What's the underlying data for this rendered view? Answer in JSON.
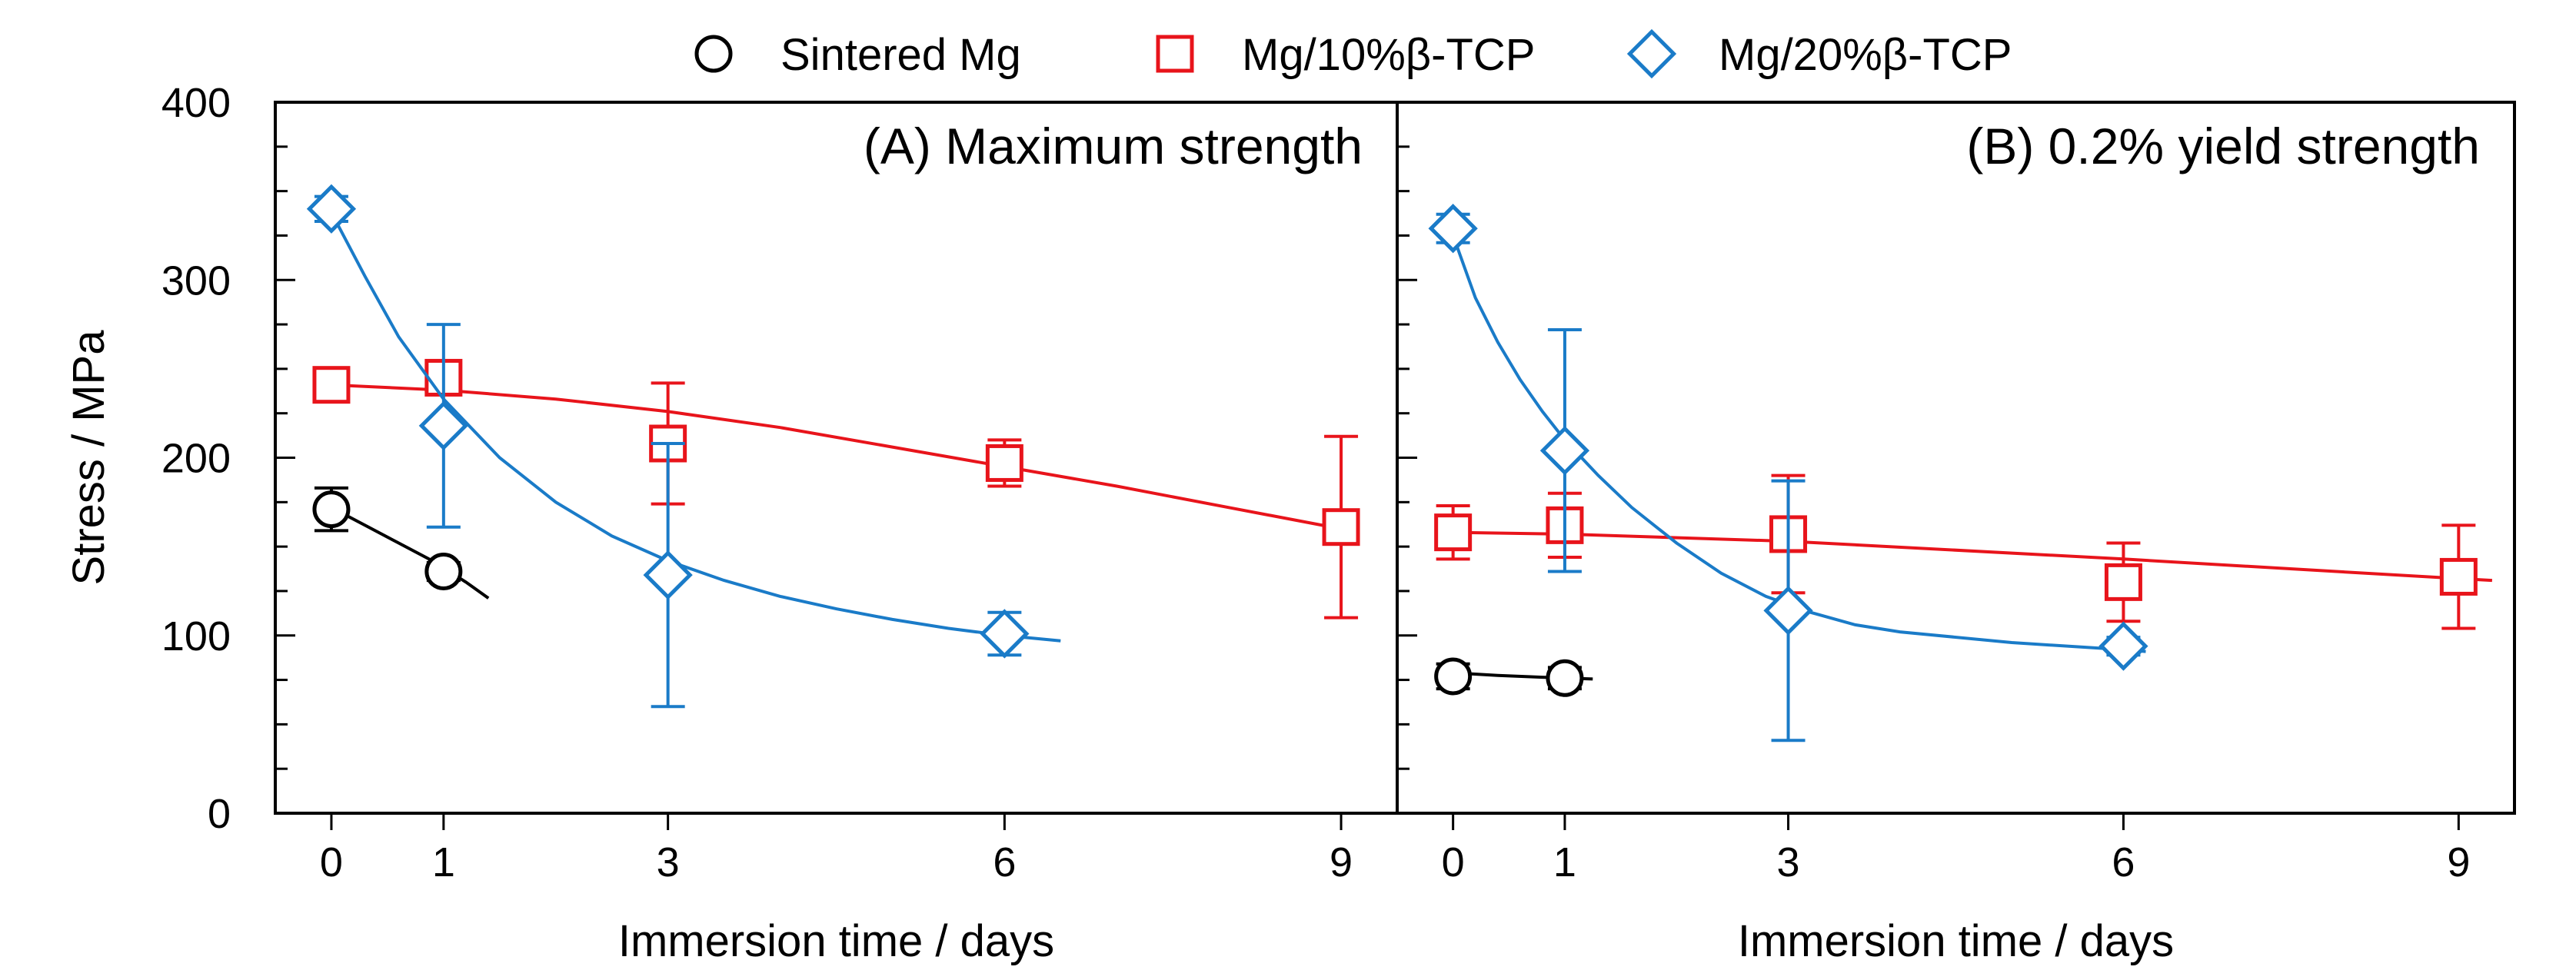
{
  "chart_data": {
    "type": "scatter",
    "legend": {
      "position": "top-center",
      "entries": [
        {
          "name": "Sintered Mg",
          "marker": "circle",
          "color": "#000000"
        },
        {
          "name": "Mg/10%β-TCP",
          "marker": "square",
          "color": "#e8141b"
        },
        {
          "name": "Mg/20%β-TCP",
          "marker": "diamond",
          "color": "#1a7bc8"
        }
      ]
    },
    "ylabel": "Stress / MPa",
    "ylim": [
      0,
      400
    ],
    "yticks": [
      0,
      100,
      200,
      300,
      400
    ],
    "y_minor_step": 25,
    "panels": [
      {
        "title": "(A) Maximum strength",
        "xlabel": "Immersion time / days",
        "xticks": [
          0,
          1,
          3,
          6,
          9
        ],
        "xlim": [
          -0.5,
          9.5
        ],
        "series": [
          {
            "name": "Sintered Mg",
            "color": "#000000",
            "marker": "circle",
            "x": [
              0,
              1
            ],
            "y": [
              171,
              136
            ],
            "err": [
              12,
              5
            ],
            "fit_x": [
              0,
              0.3,
              0.6,
              0.9,
              1.2,
              1.4
            ],
            "fit_y": [
              172,
              162,
              152,
              142,
              130,
              121
            ]
          },
          {
            "name": "Mg/10%β-TCP",
            "color": "#e8141b",
            "marker": "square",
            "x": [
              0,
              1,
              3,
              6,
              9
            ],
            "y": [
              241,
              245,
              208,
              197,
              161
            ],
            "err": [
              5,
              6,
              34,
              13,
              51
            ],
            "fit_x": [
              0,
              1,
              2,
              3,
              4,
              5,
              6,
              7,
              8,
              9
            ],
            "fit_y": [
              241,
              238,
              233,
              226,
              217,
              206,
              195,
              184,
              172,
              160
            ]
          },
          {
            "name": "Mg/20%β-TCP",
            "color": "#1a7bc8",
            "marker": "diamond",
            "x": [
              0,
              1,
              3,
              6
            ],
            "y": [
              340,
              218,
              134,
              101
            ],
            "err": [
              7,
              57,
              74,
              12
            ],
            "fit_x": [
              0,
              0.3,
              0.6,
              1,
              1.5,
              2,
              2.5,
              3,
              3.5,
              4,
              4.5,
              5,
              5.5,
              6,
              6.5
            ],
            "fit_y": [
              338,
              302,
              268,
              233,
              200,
              175,
              156,
              142,
              131,
              122,
              115,
              109,
              104,
              100,
              97
            ]
          }
        ]
      },
      {
        "title": "(B) 0.2% yield strength",
        "xlabel": "Immersion time / days",
        "xticks": [
          0,
          1,
          3,
          6,
          9
        ],
        "xlim": [
          -0.5,
          9.5
        ],
        "series": [
          {
            "name": "Sintered Mg",
            "color": "#000000",
            "marker": "circle",
            "x": [
              0,
              1
            ],
            "y": [
              77,
              76
            ],
            "err": [
              7,
              6
            ],
            "fit_x": [
              0,
              0.4,
              0.8,
              1.25
            ],
            "fit_y": [
              79,
              77.5,
              76.5,
              75.5
            ]
          },
          {
            "name": "Mg/10%β-TCP",
            "color": "#e8141b",
            "marker": "square",
            "x": [
              0,
              1,
              3,
              6,
              9
            ],
            "y": [
              158,
              162,
              157,
              130,
              133
            ],
            "err": [
              15,
              18,
              33,
              22,
              29
            ],
            "fit_x": [
              0,
              1,
              3,
              6,
              9,
              9.3
            ],
            "fit_y": [
              158,
              157,
              153,
              143,
              132,
              131
            ]
          },
          {
            "name": "Mg/20%β-TCP",
            "color": "#1a7bc8",
            "marker": "diamond",
            "x": [
              0,
              1,
              3,
              6
            ],
            "y": [
              329,
              204,
              114,
              94
            ],
            "err": [
              8,
              68,
              73,
              5
            ],
            "fit_x": [
              0,
              0.2,
              0.4,
              0.6,
              0.8,
              1,
              1.3,
              1.6,
              2,
              2.4,
              2.8,
              3.2,
              3.6,
              4,
              5,
              6,
              6.2
            ],
            "fit_y": [
              325,
              290,
              265,
              244,
              226,
              210,
              190,
              172,
              152,
              135,
              122,
              113,
              106,
              102,
              96,
              92,
              91
            ]
          }
        ]
      }
    ]
  }
}
